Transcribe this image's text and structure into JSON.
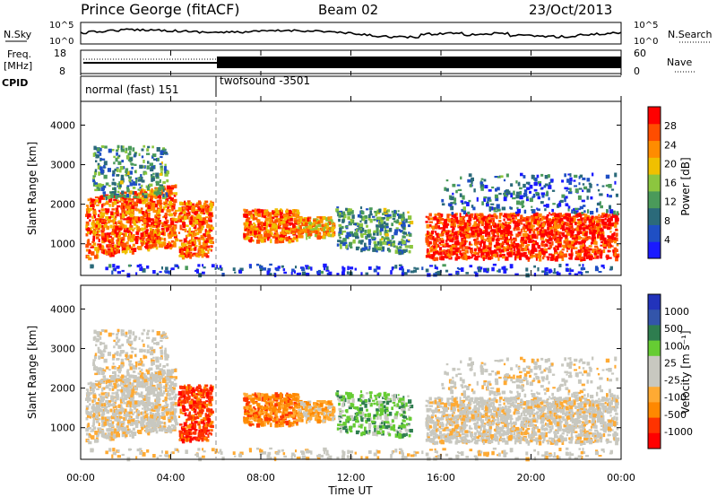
{
  "header": {
    "station": "Prince George (fitACF)",
    "beam": "Beam 02",
    "date": "23/Oct/2013"
  },
  "noise_panel": {
    "left_label": "N.Sky",
    "right_label": "N.Search",
    "left_ticks": [
      "10^5",
      "10^0"
    ],
    "right_ticks": [
      "10^5",
      "10^0"
    ]
  },
  "freq_panel": {
    "left_label_1": "Freq.",
    "left_label_2": "[MHz]",
    "left_ticks": [
      "18",
      "8"
    ],
    "right_label": "Nave",
    "right_ticks": [
      "60",
      "0"
    ]
  },
  "cpid_panel": {
    "label": "CPID",
    "segments": [
      "normal (fast) 151",
      "twofsound -3501"
    ]
  },
  "colors": {
    "power_scale": [
      "#1a1aff",
      "#1f4fc4",
      "#2b6a7a",
      "#4a9a5a",
      "#8cc63f",
      "#f0c000",
      "#ff8c00",
      "#ff4d00",
      "#ff0000"
    ],
    "velocity_scale": [
      "#ff0000",
      "#ff3300",
      "#ff8800",
      "#ffaa33",
      "#c8c8c0",
      "#c8c8c0",
      "#66cc33",
      "#2e7d4f",
      "#3355aa",
      "#2233bb"
    ]
  },
  "chart_data": [
    {
      "type": "heatmap",
      "panel": "power",
      "ylabel": "Slant Range [km]",
      "yticks": [
        "1000",
        "2000",
        "3000",
        "4000"
      ],
      "ylim": [
        200,
        4600
      ],
      "xlim_hours": [
        0,
        24
      ],
      "colorbar_label": "Power [dB]",
      "colorbar_ticks": [
        "4",
        "8",
        "12",
        "16",
        "20",
        "24",
        "28"
      ],
      "colorbar_range": [
        0,
        32
      ]
    },
    {
      "type": "heatmap",
      "panel": "velocity",
      "ylabel": "Slant Range [km]",
      "yticks": [
        "1000",
        "2000",
        "3000",
        "4000"
      ],
      "ylim": [
        200,
        4600
      ],
      "xlim_hours": [
        0,
        24
      ],
      "colorbar_label": "Velocity [m s⁻¹]",
      "colorbar_ticks": [
        "1000",
        "500",
        "100",
        "25",
        "-25",
        "-100",
        "-500",
        "-1000"
      ]
    }
  ],
  "x_axis": {
    "ticks": [
      "00:00",
      "04:00",
      "08:00",
      "12:00",
      "16:00",
      "20:00",
      "00:00"
    ],
    "label": "Time UT"
  }
}
